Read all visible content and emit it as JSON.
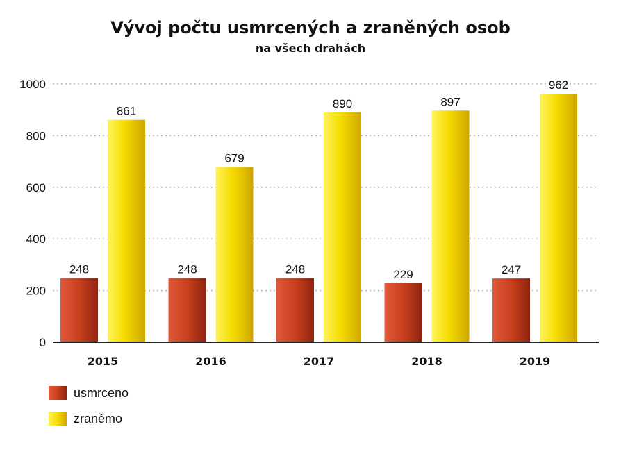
{
  "chart_data": {
    "type": "bar",
    "title": "Vývoj počtu usmrcených a zraněných osob",
    "subtitle": "na všech drahách",
    "categories": [
      "2015",
      "2016",
      "2017",
      "2018",
      "2019"
    ],
    "series": [
      {
        "name": "usmrceno",
        "values": [
          248,
          248,
          248,
          229,
          247
        ],
        "color": "#c8401e"
      },
      {
        "name": "zraněmo",
        "values": [
          861,
          679,
          890,
          897,
          962
        ],
        "color": "#f2d800"
      }
    ],
    "ylim": [
      0,
      1000
    ],
    "yticks": [
      0,
      200,
      400,
      600,
      800,
      1000
    ],
    "grid": true,
    "legend_position": "bottom-left"
  }
}
